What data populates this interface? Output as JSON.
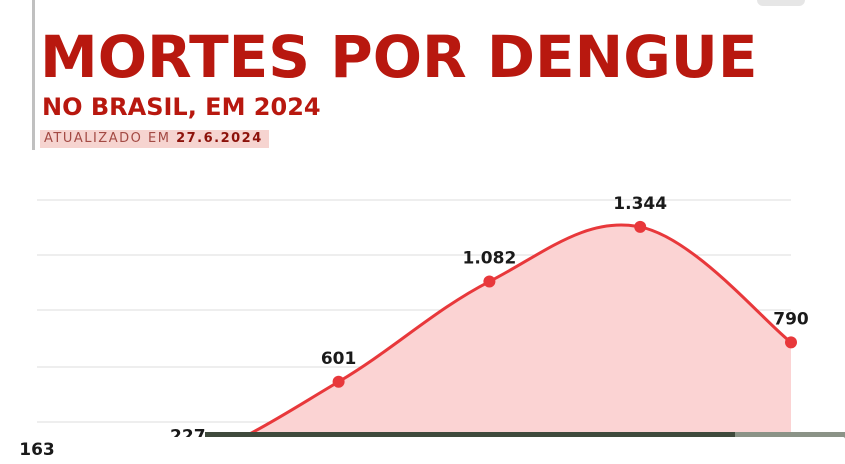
{
  "header": {
    "title": "MORTES POR DENGUE",
    "subtitle": "NO BRASIL, EM 2024",
    "updated_prefix": "ATUALIZADO EM",
    "updated_date": "27.6.2024"
  },
  "chart_data": {
    "type": "area",
    "title": "MORTES POR DENGUE",
    "subtitle": "NO BRASIL, EM 2024",
    "xlabel": "",
    "ylabel": "",
    "grid": true,
    "ylim": [
      0,
      1550
    ],
    "x": [
      0,
      1,
      2,
      3,
      4,
      5
    ],
    "values": [
      163,
      227,
      601,
      1082,
      1344,
      790
    ],
    "labels": [
      "163",
      "227",
      "601",
      "1.082",
      "1.344",
      "790"
    ],
    "colors": {
      "line": "#e8383b",
      "fill": "#fbd3d3",
      "point": "#e8383b",
      "grid": "#dedede"
    }
  }
}
